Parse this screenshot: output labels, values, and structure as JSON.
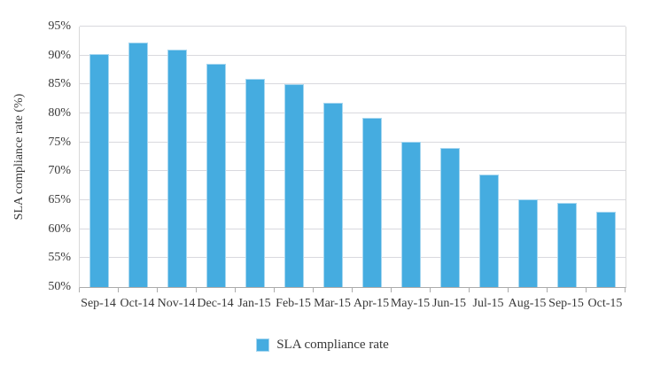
{
  "chart_data": {
    "type": "bar",
    "title": "",
    "xlabel": "",
    "ylabel": "SLA compliance rate (%)",
    "categories": [
      "Sep-14",
      "Oct-14",
      "Nov-14",
      "Dec-14",
      "Jan-15",
      "Feb-15",
      "Mar-15",
      "Apr-15",
      "May-15",
      "Jun-15",
      "Jul-15",
      "Aug-15",
      "Sep-15",
      "Oct-15"
    ],
    "series": [
      {
        "name": "SLA compliance rate",
        "values": [
          90.3,
          92.2,
          91.0,
          88.6,
          86.0,
          85.1,
          81.9,
          79.2,
          75.1,
          74.1,
          69.5,
          65.2,
          64.5,
          63.0
        ]
      }
    ],
    "ylim": [
      50,
      95
    ],
    "ytick_step": 5,
    "ytick_labels": [
      "50%",
      "55%",
      "60%",
      "65%",
      "70%",
      "75%",
      "80%",
      "85%",
      "90%",
      "95%"
    ],
    "grid": true,
    "legend_position": "bottom",
    "colors": {
      "bar_fill": "#45ace0",
      "bar_border": "#a7d7f0",
      "gridline": "#d9d9de",
      "axis_line": "#ababab",
      "text": "#383838",
      "background": "#ffffff"
    }
  },
  "legend": {
    "label": "SLA compliance rate"
  }
}
